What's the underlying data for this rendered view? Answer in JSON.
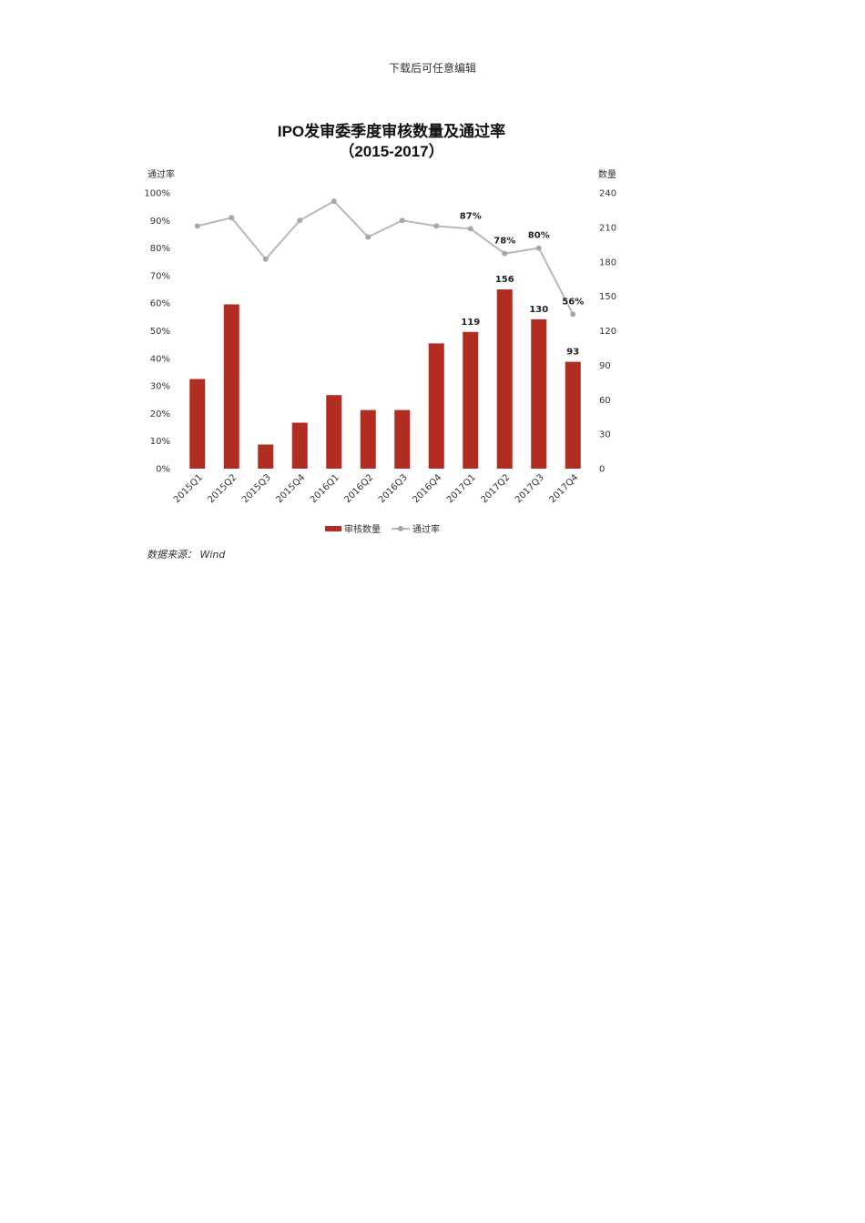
{
  "page": {
    "header": "下载后可任意编辑",
    "source": "数据来源： Wind"
  },
  "chart_data": {
    "type": "bar",
    "title": "IPO发审委季度审核数量及通过率",
    "subtitle": "（2015-2017）",
    "categories": [
      "2015Q1",
      "2015Q2",
      "2015Q3",
      "2015Q4",
      "2016Q1",
      "2016Q2",
      "2016Q3",
      "2016Q4",
      "2017Q1",
      "2017Q2",
      "2017Q3",
      "2017Q4"
    ],
    "series": [
      {
        "name": "审核数量",
        "axis": "right",
        "kind": "bar",
        "color": "#b22c22",
        "values": [
          78,
          143,
          21,
          40,
          64,
          51,
          51,
          109,
          119,
          156,
          130,
          93
        ],
        "labels": [
          "",
          "",
          "",
          "",
          "",
          "",
          "",
          "",
          "119",
          "156",
          "130",
          "93"
        ]
      },
      {
        "name": "通过率",
        "axis": "left",
        "kind": "line",
        "color": "#b8b8b8",
        "values": [
          88,
          91,
          76,
          90,
          97,
          84,
          90,
          88,
          87,
          78,
          80,
          56
        ],
        "labels": [
          "",
          "",
          "",
          "",
          "",
          "",
          "",
          "",
          "87%",
          "78%",
          "80%",
          "56%"
        ]
      }
    ],
    "y_left": {
      "label": "通过率",
      "range": [
        0,
        100
      ],
      "ticks": [
        "0%",
        "10%",
        "20%",
        "30%",
        "40%",
        "50%",
        "60%",
        "70%",
        "80%",
        "90%",
        "100%"
      ]
    },
    "y_right": {
      "label": "数量",
      "range": [
        0,
        240
      ],
      "ticks": [
        "0",
        "30",
        "60",
        "90",
        "120",
        "150",
        "180",
        "210",
        "240"
      ]
    },
    "legend_position": "bottom",
    "grid": false
  }
}
